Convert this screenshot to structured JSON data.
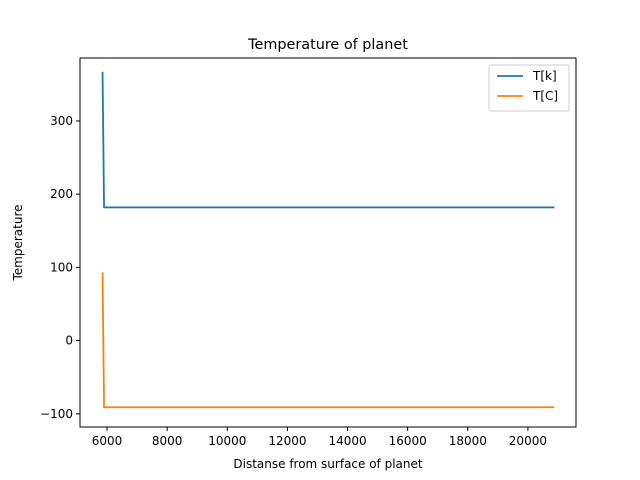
{
  "chart_data": {
    "type": "line",
    "title": "Temperature of planet",
    "xlabel": "Distanse from surface of planet",
    "ylabel": "Temperature",
    "xlim": [
      5100,
      21600
    ],
    "ylim": [
      -118,
      386
    ],
    "xticks": [
      6000,
      8000,
      10000,
      12000,
      14000,
      16000,
      18000,
      20000
    ],
    "yticks": [
      -100,
      0,
      100,
      200,
      300
    ],
    "grid": false,
    "legend": "top-right",
    "series": [
      {
        "name": "T[k]",
        "color": "#1f77b4",
        "x": [
          5850,
          5900,
          20850
        ],
        "y": [
          366,
          182,
          182
        ]
      },
      {
        "name": "T[C]",
        "color": "#ff7f0e",
        "x": [
          5850,
          5900,
          20850
        ],
        "y": [
          92,
          -91,
          -91
        ]
      }
    ]
  }
}
